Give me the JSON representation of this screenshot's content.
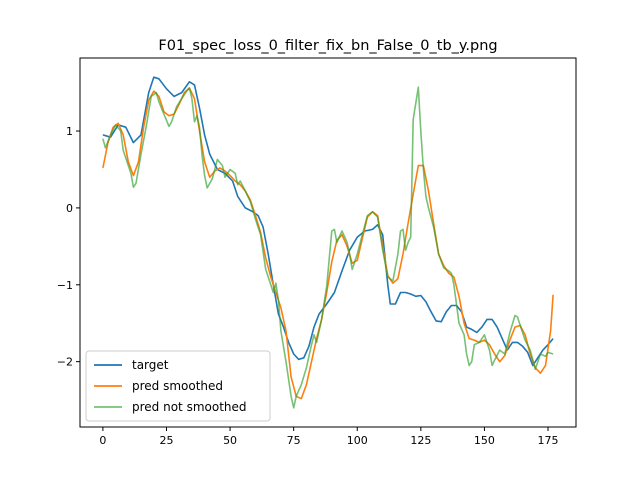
{
  "chart_data": {
    "type": "line",
    "title": "F01_spec_loss_0_filter_fix_bn_False_0_tb_y.png",
    "xlabel": "",
    "ylabel": "",
    "xlim": [
      -9,
      186
    ],
    "ylim": [
      -2.85,
      1.95
    ],
    "xticks": [
      0,
      25,
      50,
      75,
      100,
      125,
      150,
      175
    ],
    "yticks": [
      1,
      0,
      -1,
      -2
    ],
    "grid": false,
    "legend_position": "lower-left",
    "series": [
      {
        "name": "target",
        "color": "#1f77b4",
        "points": [
          [
            0,
            0.95
          ],
          [
            3,
            0.92
          ],
          [
            6,
            1.08
          ],
          [
            9,
            1.05
          ],
          [
            12,
            0.85
          ],
          [
            15,
            0.95
          ],
          [
            18,
            1.5
          ],
          [
            20,
            1.7
          ],
          [
            22,
            1.68
          ],
          [
            25,
            1.55
          ],
          [
            28,
            1.45
          ],
          [
            31,
            1.5
          ],
          [
            34,
            1.64
          ],
          [
            36,
            1.6
          ],
          [
            38,
            1.3
          ],
          [
            40,
            0.95
          ],
          [
            42,
            0.7
          ],
          [
            45,
            0.5
          ],
          [
            48,
            0.45
          ],
          [
            51,
            0.35
          ],
          [
            53,
            0.15
          ],
          [
            56,
            0.0
          ],
          [
            59,
            -0.05
          ],
          [
            61,
            -0.1
          ],
          [
            63,
            -0.25
          ],
          [
            65,
            -0.6
          ],
          [
            67,
            -1.0
          ],
          [
            69,
            -1.38
          ],
          [
            71,
            -1.55
          ],
          [
            73,
            -1.75
          ],
          [
            75,
            -1.9
          ],
          [
            77,
            -1.97
          ],
          [
            79,
            -1.95
          ],
          [
            81,
            -1.8
          ],
          [
            83,
            -1.55
          ],
          [
            85,
            -1.38
          ],
          [
            88,
            -1.25
          ],
          [
            91,
            -1.1
          ],
          [
            94,
            -0.82
          ],
          [
            97,
            -0.55
          ],
          [
            100,
            -0.38
          ],
          [
            103,
            -0.3
          ],
          [
            106,
            -0.28
          ],
          [
            108,
            -0.22
          ],
          [
            110,
            -0.35
          ],
          [
            112,
            -1.0
          ],
          [
            113,
            -1.25
          ],
          [
            115,
            -1.25
          ],
          [
            117,
            -1.1
          ],
          [
            119,
            -1.1
          ],
          [
            121,
            -1.12
          ],
          [
            123,
            -1.15
          ],
          [
            125,
            -1.14
          ],
          [
            127,
            -1.22
          ],
          [
            129,
            -1.35
          ],
          [
            131,
            -1.47
          ],
          [
            133,
            -1.48
          ],
          [
            135,
            -1.35
          ],
          [
            137,
            -1.27
          ],
          [
            139,
            -1.27
          ],
          [
            141,
            -1.35
          ],
          [
            143,
            -1.55
          ],
          [
            145,
            -1.58
          ],
          [
            147,
            -1.62
          ],
          [
            149,
            -1.55
          ],
          [
            151,
            -1.45
          ],
          [
            153,
            -1.45
          ],
          [
            155,
            -1.55
          ],
          [
            157,
            -1.7
          ],
          [
            159,
            -1.85
          ],
          [
            161,
            -1.75
          ],
          [
            163,
            -1.75
          ],
          [
            165,
            -1.8
          ],
          [
            167,
            -1.88
          ],
          [
            169,
            -2.05
          ],
          [
            171,
            -1.95
          ],
          [
            173,
            -1.85
          ],
          [
            175,
            -1.78
          ],
          [
            177,
            -1.7
          ]
        ]
      },
      {
        "name": "pred smoothed",
        "color": "#ff7f0e",
        "points": [
          [
            0,
            0.52
          ],
          [
            2,
            0.85
          ],
          [
            4,
            1.05
          ],
          [
            6,
            1.1
          ],
          [
            8,
            0.95
          ],
          [
            10,
            0.6
          ],
          [
            12,
            0.42
          ],
          [
            14,
            0.6
          ],
          [
            16,
            1.05
          ],
          [
            18,
            1.4
          ],
          [
            20,
            1.52
          ],
          [
            22,
            1.45
          ],
          [
            24,
            1.25
          ],
          [
            26,
            1.2
          ],
          [
            28,
            1.22
          ],
          [
            30,
            1.35
          ],
          [
            32,
            1.5
          ],
          [
            34,
            1.56
          ],
          [
            36,
            1.42
          ],
          [
            38,
            1.0
          ],
          [
            40,
            0.6
          ],
          [
            42,
            0.4
          ],
          [
            44,
            0.48
          ],
          [
            46,
            0.52
          ],
          [
            48,
            0.48
          ],
          [
            50,
            0.42
          ],
          [
            52,
            0.35
          ],
          [
            54,
            0.3
          ],
          [
            56,
            0.22
          ],
          [
            58,
            0.1
          ],
          [
            60,
            -0.1
          ],
          [
            62,
            -0.32
          ],
          [
            64,
            -0.65
          ],
          [
            66,
            -0.9
          ],
          [
            68,
            -1.1
          ],
          [
            70,
            -1.3
          ],
          [
            72,
            -1.6
          ],
          [
            74,
            -2.2
          ],
          [
            76,
            -2.45
          ],
          [
            78,
            -2.48
          ],
          [
            80,
            -2.3
          ],
          [
            82,
            -2.0
          ],
          [
            84,
            -1.7
          ],
          [
            86,
            -1.45
          ],
          [
            88,
            -1.1
          ],
          [
            90,
            -0.7
          ],
          [
            92,
            -0.42
          ],
          [
            94,
            -0.35
          ],
          [
            96,
            -0.5
          ],
          [
            98,
            -0.72
          ],
          [
            100,
            -0.68
          ],
          [
            102,
            -0.4
          ],
          [
            104,
            -0.12
          ],
          [
            106,
            -0.05
          ],
          [
            108,
            -0.1
          ],
          [
            110,
            -0.5
          ],
          [
            112,
            -0.88
          ],
          [
            114,
            -0.98
          ],
          [
            116,
            -0.92
          ],
          [
            118,
            -0.6
          ],
          [
            120,
            -0.2
          ],
          [
            122,
            0.18
          ],
          [
            124,
            0.55
          ],
          [
            126,
            0.55
          ],
          [
            128,
            0.22
          ],
          [
            130,
            -0.2
          ],
          [
            132,
            -0.6
          ],
          [
            134,
            -0.75
          ],
          [
            136,
            -0.85
          ],
          [
            138,
            -0.9
          ],
          [
            140,
            -1.15
          ],
          [
            142,
            -1.5
          ],
          [
            144,
            -1.7
          ],
          [
            146,
            -1.72
          ],
          [
            148,
            -1.75
          ],
          [
            150,
            -1.72
          ],
          [
            152,
            -1.78
          ],
          [
            154,
            -1.9
          ],
          [
            156,
            -2.0
          ],
          [
            158,
            -1.92
          ],
          [
            160,
            -1.72
          ],
          [
            162,
            -1.55
          ],
          [
            164,
            -1.53
          ],
          [
            166,
            -1.65
          ],
          [
            168,
            -1.9
          ],
          [
            170,
            -2.08
          ],
          [
            172,
            -2.15
          ],
          [
            174,
            -2.05
          ],
          [
            176,
            -1.6
          ],
          [
            177,
            -1.13
          ]
        ]
      },
      {
        "name": "pred not smoothed",
        "color": "#2ca02c",
        "points": [
          [
            0,
            0.9
          ],
          [
            1,
            0.78
          ],
          [
            3,
            0.95
          ],
          [
            5,
            1.08
          ],
          [
            7,
            1.0
          ],
          [
            8,
            0.75
          ],
          [
            10,
            0.55
          ],
          [
            11,
            0.45
          ],
          [
            12,
            0.27
          ],
          [
            13,
            0.32
          ],
          [
            15,
            0.7
          ],
          [
            17,
            1.05
          ],
          [
            19,
            1.45
          ],
          [
            21,
            1.5
          ],
          [
            22,
            1.38
          ],
          [
            24,
            1.22
          ],
          [
            26,
            1.06
          ],
          [
            27,
            1.12
          ],
          [
            29,
            1.32
          ],
          [
            31,
            1.42
          ],
          [
            33,
            1.52
          ],
          [
            34,
            1.56
          ],
          [
            35,
            1.42
          ],
          [
            36,
            1.12
          ],
          [
            37,
            1.2
          ],
          [
            38,
            1.05
          ],
          [
            39,
            0.68
          ],
          [
            40,
            0.42
          ],
          [
            41,
            0.26
          ],
          [
            43,
            0.38
          ],
          [
            45,
            0.63
          ],
          [
            47,
            0.55
          ],
          [
            48,
            0.4
          ],
          [
            50,
            0.5
          ],
          [
            52,
            0.45
          ],
          [
            53,
            0.3
          ],
          [
            54,
            0.35
          ],
          [
            56,
            0.22
          ],
          [
            58,
            0.08
          ],
          [
            60,
            -0.15
          ],
          [
            62,
            -0.35
          ],
          [
            64,
            -0.8
          ],
          [
            66,
            -1.0
          ],
          [
            67,
            -1.1
          ],
          [
            68,
            -0.98
          ],
          [
            69,
            -1.2
          ],
          [
            70,
            -1.6
          ],
          [
            72,
            -2.0
          ],
          [
            74,
            -2.45
          ],
          [
            75,
            -2.6
          ],
          [
            76,
            -2.45
          ],
          [
            78,
            -2.3
          ],
          [
            80,
            -2.08
          ],
          [
            82,
            -1.78
          ],
          [
            83,
            -1.65
          ],
          [
            84,
            -1.75
          ],
          [
            86,
            -1.45
          ],
          [
            88,
            -1.02
          ],
          [
            89,
            -0.65
          ],
          [
            90,
            -0.3
          ],
          [
            91,
            -0.28
          ],
          [
            92,
            -0.45
          ],
          [
            94,
            -0.3
          ],
          [
            96,
            -0.45
          ],
          [
            97,
            -0.6
          ],
          [
            98,
            -0.8
          ],
          [
            100,
            -0.6
          ],
          [
            102,
            -0.35
          ],
          [
            104,
            -0.1
          ],
          [
            106,
            -0.05
          ],
          [
            108,
            -0.12
          ],
          [
            110,
            -0.55
          ],
          [
            112,
            -0.9
          ],
          [
            114,
            -0.95
          ],
          [
            116,
            -0.6
          ],
          [
            117,
            -0.3
          ],
          [
            118,
            -0.28
          ],
          [
            119,
            -0.55
          ],
          [
            120,
            -0.45
          ],
          [
            121,
            -0.38
          ],
          [
            122,
            1.15
          ],
          [
            124,
            1.57
          ],
          [
            125,
            1.0
          ],
          [
            126,
            0.5
          ],
          [
            127,
            0.15
          ],
          [
            128,
            0.0
          ],
          [
            130,
            -0.25
          ],
          [
            132,
            -0.6
          ],
          [
            134,
            -0.78
          ],
          [
            136,
            -0.82
          ],
          [
            137,
            -0.85
          ],
          [
            138,
            -1.0
          ],
          [
            140,
            -1.5
          ],
          [
            142,
            -1.65
          ],
          [
            143,
            -1.9
          ],
          [
            144,
            -2.05
          ],
          [
            145,
            -2.0
          ],
          [
            146,
            -1.78
          ],
          [
            148,
            -1.75
          ],
          [
            150,
            -1.65
          ],
          [
            152,
            -1.85
          ],
          [
            153,
            -2.05
          ],
          [
            154,
            -1.98
          ],
          [
            156,
            -1.85
          ],
          [
            158,
            -1.9
          ],
          [
            160,
            -1.62
          ],
          [
            162,
            -1.4
          ],
          [
            163,
            -1.42
          ],
          [
            164,
            -1.52
          ],
          [
            166,
            -1.72
          ],
          [
            168,
            -1.85
          ],
          [
            170,
            -2.1
          ],
          [
            172,
            -1.9
          ],
          [
            174,
            -1.93
          ],
          [
            175,
            -1.88
          ],
          [
            177,
            -1.9
          ]
        ]
      }
    ]
  }
}
